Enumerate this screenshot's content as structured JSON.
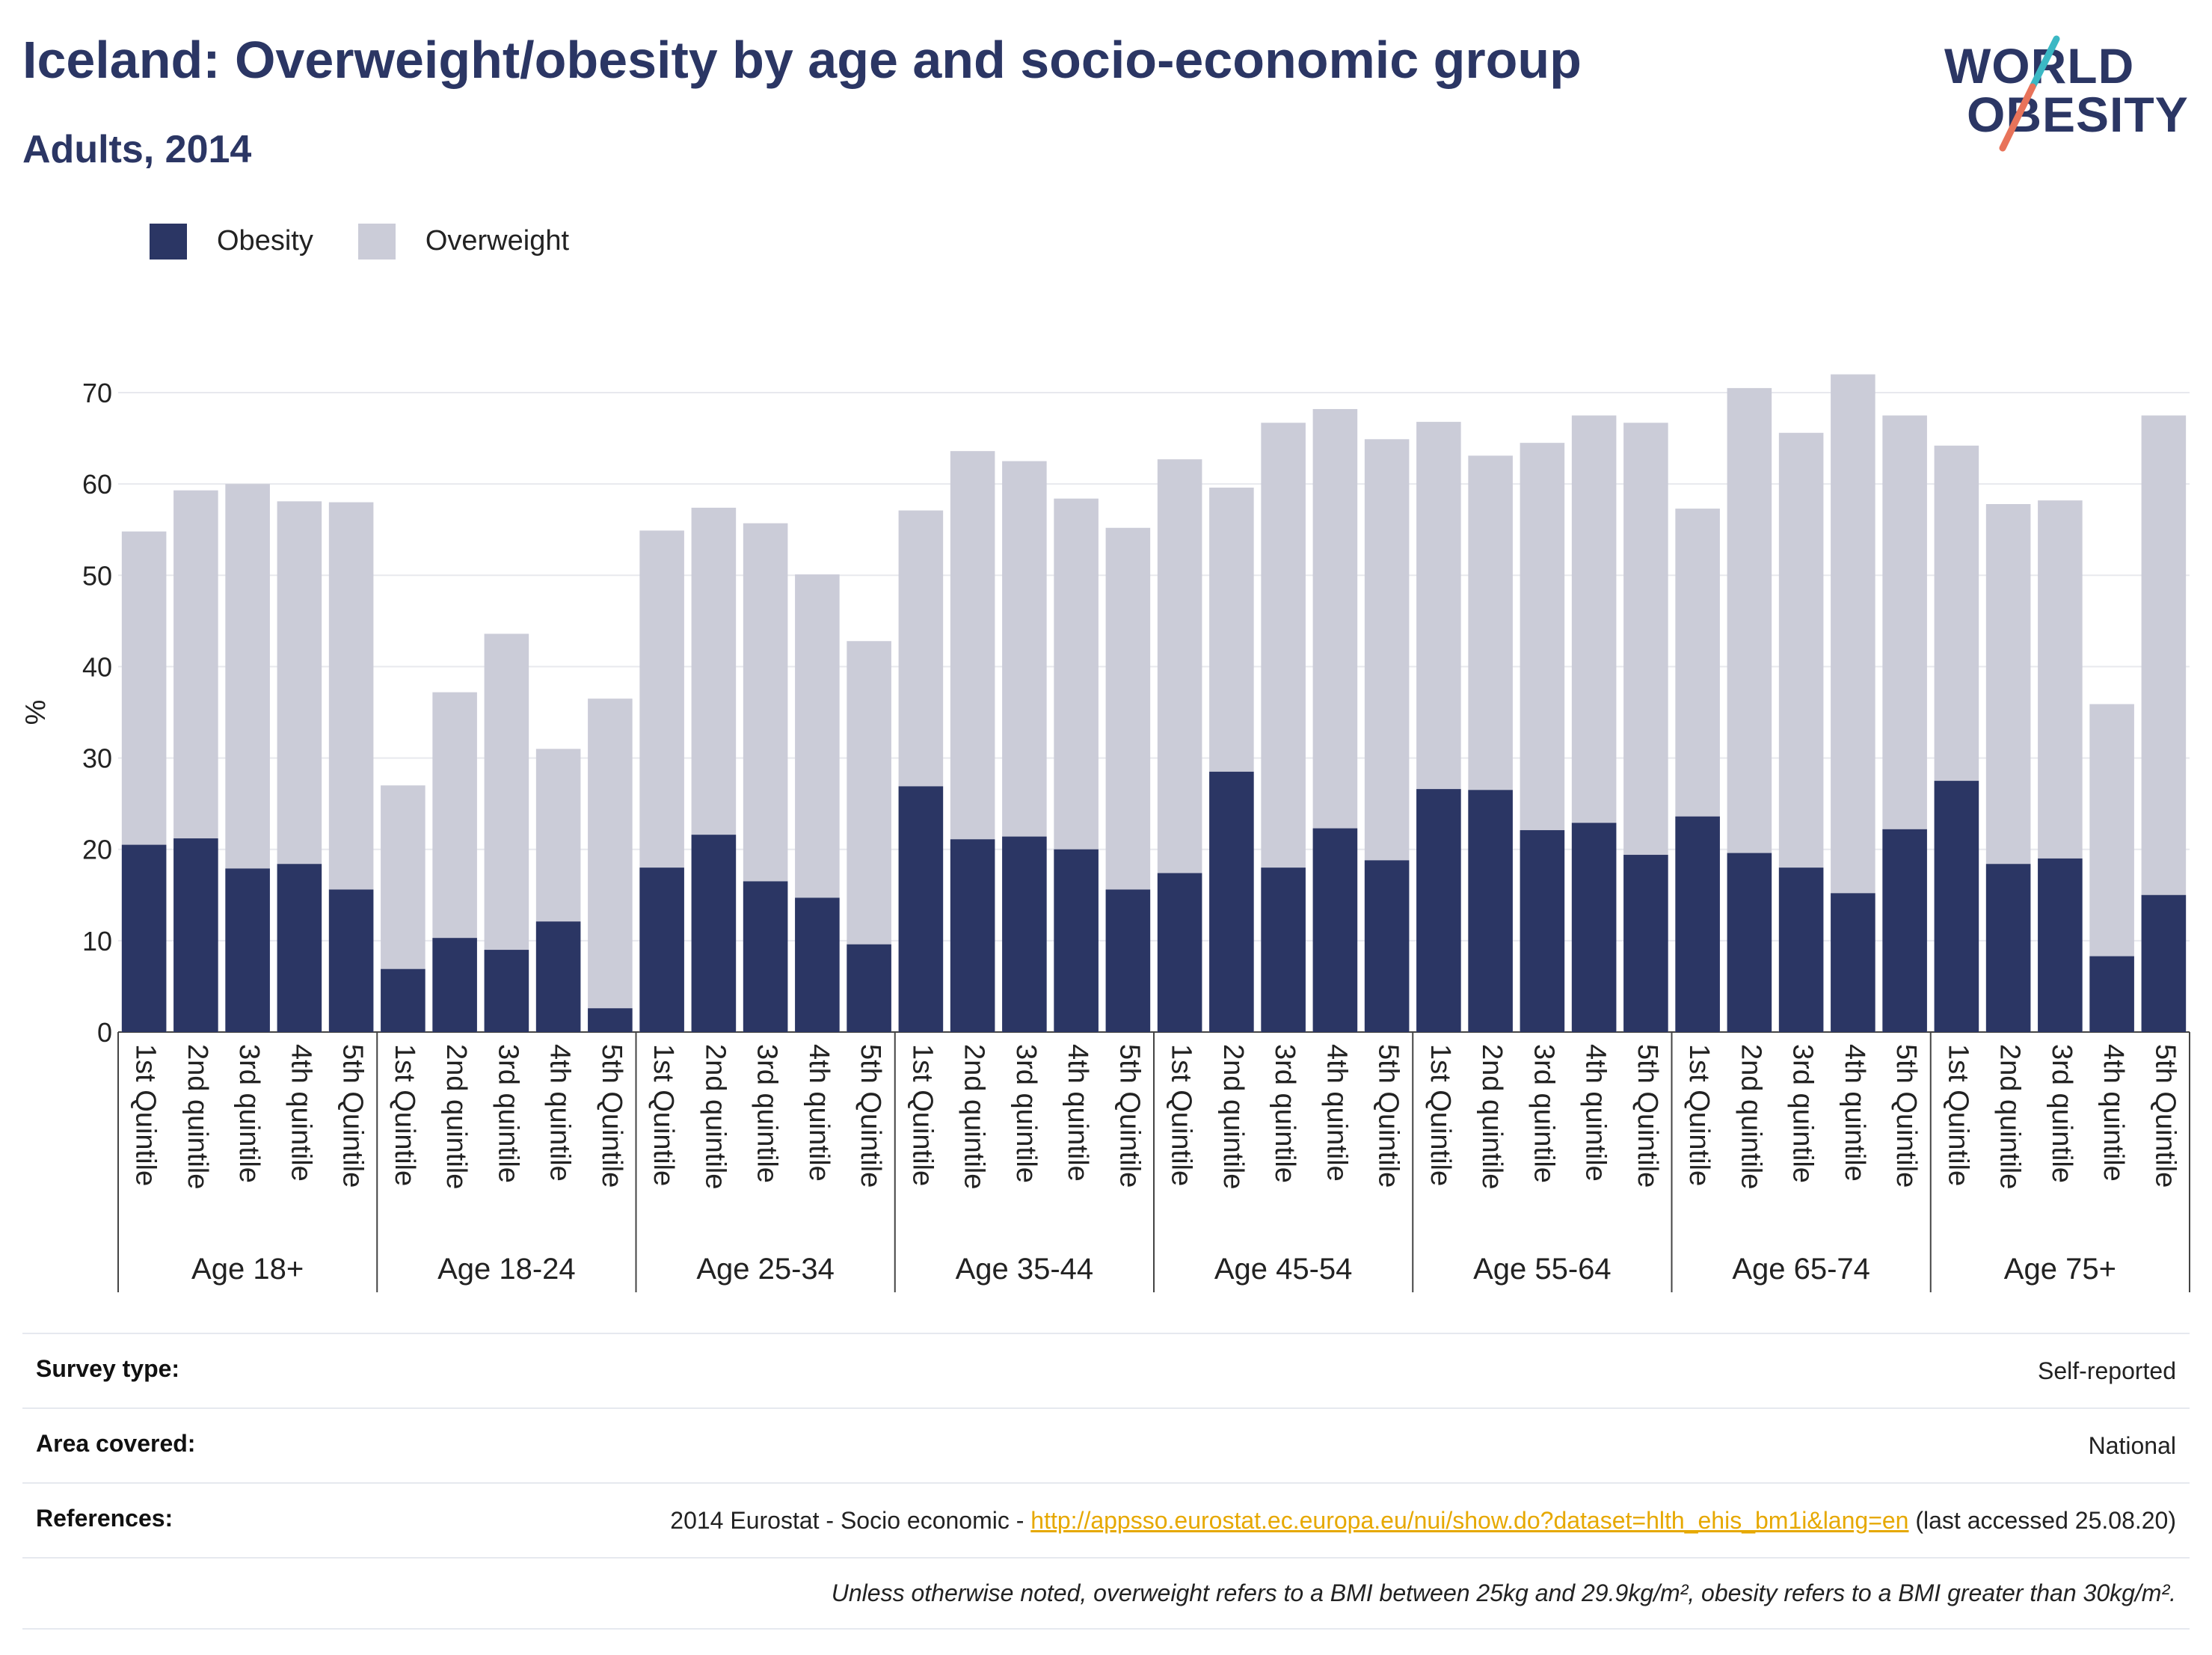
{
  "header": {
    "title": "Iceland: Overweight/obesity by age and socio-economic group",
    "subtitle": "Adults, 2014"
  },
  "logo": {
    "line1": "WORLD",
    "line2": "OBESITY",
    "accent_teal": "#3bb8c4",
    "accent_coral": "#e8735a"
  },
  "legend": [
    {
      "label": "Obesity",
      "color": "#2b3664"
    },
    {
      "label": "Overweight",
      "color": "#cbccd8"
    }
  ],
  "chart_data": {
    "type": "bar",
    "stacked": false,
    "ylabel": "%",
    "ylim": [
      0,
      70
    ],
    "yticks": [
      0,
      10,
      20,
      30,
      40,
      50,
      60,
      70
    ],
    "grid": true,
    "legend_position": "top-left",
    "groups": [
      {
        "label": "Age 18+",
        "categories": [
          "1st Quintile",
          "2nd quintile",
          "3rd quintile",
          "4th quintile",
          "5th Quintile"
        ]
      },
      {
        "label": "Age 18-24",
        "categories": [
          "1st Quintile",
          "2nd quintile",
          "3rd quintile",
          "4th quintile",
          "5th Quintile"
        ]
      },
      {
        "label": "Age 25-34",
        "categories": [
          "1st Quintile",
          "2nd quintile",
          "3rd quintile",
          "4th quintile",
          "5th Quintile"
        ]
      },
      {
        "label": "Age 35-44",
        "categories": [
          "1st Quintile",
          "2nd quintile",
          "3rd quintile",
          "4th quintile",
          "5th Quintile"
        ]
      },
      {
        "label": "Age 45-54",
        "categories": [
          "1st Quintile",
          "2nd quintile",
          "3rd quintile",
          "4th quintile",
          "5th Quintile"
        ]
      },
      {
        "label": "Age 55-64",
        "categories": [
          "1st Quintile",
          "2nd quintile",
          "3rd quintile",
          "4th quintile",
          "5th Quintile"
        ]
      },
      {
        "label": "Age 65-74",
        "categories": [
          "1st Quintile",
          "2nd quintile",
          "3rd quintile",
          "4th quintile",
          "5th Quintile"
        ]
      },
      {
        "label": "Age 75+",
        "categories": [
          "1st Quintile",
          "2nd quintile",
          "3rd quintile",
          "4th quintile",
          "5th Quintile"
        ]
      }
    ],
    "series": [
      {
        "name": "Obesity",
        "color": "#2b3664",
        "values": [
          20.5,
          21.2,
          17.9,
          18.4,
          15.6,
          6.9,
          10.3,
          9.0,
          12.1,
          2.6,
          18.0,
          21.6,
          16.5,
          14.7,
          9.6,
          26.9,
          21.1,
          21.4,
          20.0,
          15.6,
          17.4,
          28.5,
          18.0,
          22.3,
          18.8,
          26.6,
          26.5,
          22.1,
          22.9,
          19.4,
          23.6,
          19.6,
          18.0,
          15.2,
          22.2,
          27.5,
          18.4,
          19.0,
          8.3,
          15.0
        ]
      },
      {
        "name": "Overweight",
        "color": "#cbccd8",
        "values": [
          54.8,
          59.3,
          60.0,
          58.1,
          58.0,
          27.0,
          37.2,
          43.6,
          31.0,
          36.5,
          54.9,
          57.4,
          55.7,
          50.1,
          42.8,
          57.1,
          63.6,
          62.5,
          58.4,
          55.2,
          62.7,
          59.6,
          66.7,
          68.2,
          64.9,
          66.8,
          63.1,
          64.5,
          67.5,
          66.7,
          57.3,
          70.5,
          65.6,
          72.0,
          67.5,
          64.2,
          57.8,
          58.2,
          35.9,
          67.5
        ]
      }
    ]
  },
  "meta": {
    "survey_type_label": "Survey type:",
    "survey_type_value": "Self-reported",
    "area_label": "Area covered:",
    "area_value": "National",
    "references_label": "References:",
    "references_prefix": "2014 Eurostat - Socio economic - ",
    "references_link": "http://appsso.eurostat.ec.europa.eu/nui/show.do?dataset=hlth_ehis_bm1i&lang=en",
    "references_suffix": " (last accessed 25.08.20)",
    "note": "Unless otherwise noted, overweight refers to a BMI between 25kg and 29.9kg/m², obesity refers to a BMI greater than 30kg/m²."
  }
}
